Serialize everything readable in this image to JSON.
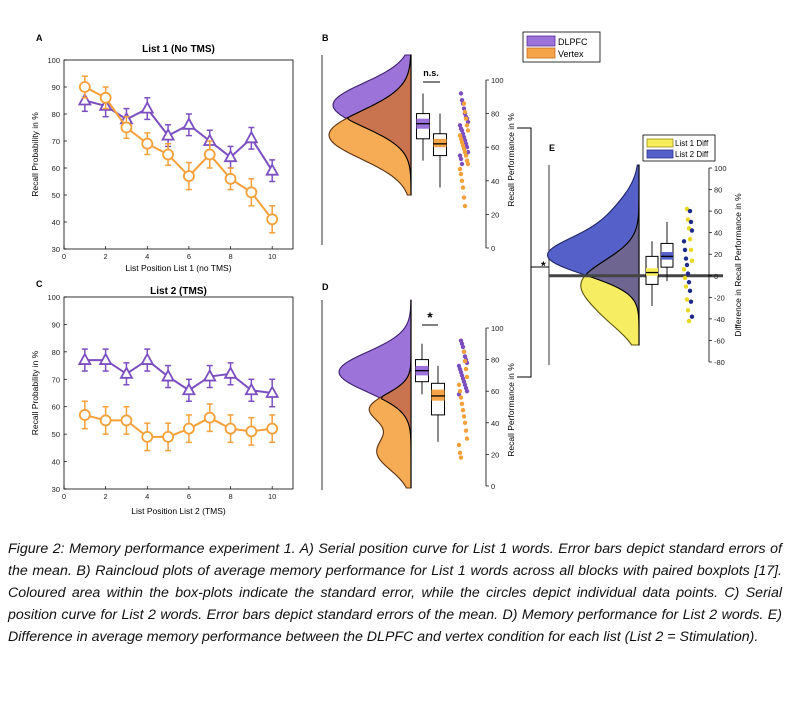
{
  "colors": {
    "dlpfc": "#7b4fc0",
    "dlpfc_fill": "#9b73d9",
    "vertex": "#f5a03a",
    "vertex_fill": "#f5a447",
    "overlap": "#c9744f",
    "list1_diff": "#f7ec5a",
    "list2_diff": "#5560c8",
    "overlap_e": "#6e6690"
  },
  "chart_data": [
    {
      "panel": "A",
      "type": "line",
      "title": "List 1 (No TMS)",
      "xlabel": "List Position List 1 (no TMS)",
      "ylabel": "Recall Probability in %",
      "xlim": [
        0,
        11
      ],
      "ylim": [
        30,
        100
      ],
      "xticks": [
        "0",
        "2",
        "4",
        "6",
        "8",
        "10"
      ],
      "yticks": [
        "30",
        "40",
        "50",
        "60",
        "70",
        "80",
        "90",
        "100"
      ],
      "x": [
        1,
        2,
        3,
        4,
        5,
        6,
        7,
        8,
        9,
        10
      ],
      "series": [
        {
          "name": "DLPFC",
          "marker": "triangle",
          "values": [
            85,
            83,
            78,
            82,
            72,
            76,
            70,
            64,
            71,
            59
          ],
          "errors": [
            4,
            4,
            4,
            4,
            4,
            4,
            4,
            4,
            4,
            4
          ]
        },
        {
          "name": "Vertex",
          "marker": "circle",
          "values": [
            90,
            86,
            75,
            69,
            65,
            57,
            65,
            56,
            51,
            41
          ],
          "errors": [
            4,
            4,
            4,
            4,
            4,
            5,
            5,
            4,
            5,
            5
          ]
        }
      ]
    },
    {
      "panel": "C",
      "type": "line",
      "title": "List 2 (TMS)",
      "xlabel": "List Position List 2 (TMS)",
      "ylabel": "Recall Probability in %",
      "xlim": [
        0,
        11
      ],
      "ylim": [
        30,
        100
      ],
      "xticks": [
        "0",
        "2",
        "4",
        "6",
        "8",
        "10"
      ],
      "yticks": [
        "30",
        "40",
        "50",
        "60",
        "70",
        "80",
        "90",
        "100"
      ],
      "x": [
        1,
        2,
        3,
        4,
        5,
        6,
        7,
        8,
        9,
        10
      ],
      "series": [
        {
          "name": "DLPFC",
          "marker": "triangle",
          "values": [
            77,
            77,
            72,
            77,
            71,
            66,
            71,
            72,
            66,
            65
          ],
          "errors": [
            4,
            4,
            4,
            4,
            4,
            4,
            4,
            4,
            4,
            5
          ]
        },
        {
          "name": "Vertex",
          "marker": "circle",
          "values": [
            57,
            55,
            55,
            49,
            49,
            52,
            56,
            52,
            51,
            52
          ],
          "errors": [
            5,
            5,
            5,
            5,
            5,
            5,
            5,
            5,
            5,
            5
          ]
        }
      ]
    },
    {
      "panel": "B",
      "type": "raincloud",
      "ylabel": "Recall Performance in %",
      "ylim": [
        0,
        100
      ],
      "yticks": [
        "0",
        "20",
        "40",
        "60",
        "80",
        "100"
      ],
      "significance": "n.s.",
      "boxes": [
        {
          "name": "DLPFC",
          "q1": 65,
          "median": 74,
          "q3": 80,
          "whisker_low": 52,
          "whisker_high": 92,
          "se_low": 71,
          "se_high": 77
        },
        {
          "name": "Vertex",
          "q1": 55,
          "median": 62,
          "q3": 68,
          "whisker_low": 36,
          "whisker_high": 80,
          "se_low": 60,
          "se_high": 65
        }
      ],
      "points": {
        "DLPFC": [
          92,
          88,
          86,
          83,
          80,
          78,
          77,
          75,
          73,
          71,
          70,
          68,
          66,
          64,
          62,
          60,
          57,
          55,
          53,
          50
        ],
        "Vertex": [
          86,
          81,
          77,
          73,
          70,
          67,
          65,
          63,
          61,
          59,
          57,
          55,
          52,
          50,
          47,
          44,
          40,
          36,
          30,
          25
        ]
      }
    },
    {
      "panel": "D",
      "type": "raincloud",
      "ylabel": "Recall Performance in %",
      "ylim": [
        0,
        100
      ],
      "yticks": [
        "0",
        "20",
        "40",
        "60",
        "80",
        "100"
      ],
      "significance": "*",
      "boxes": [
        {
          "name": "DLPFC",
          "q1": 66,
          "median": 73,
          "q3": 80,
          "whisker_low": 58,
          "whisker_high": 90,
          "se_low": 70,
          "se_high": 76
        },
        {
          "name": "Vertex",
          "q1": 45,
          "median": 57,
          "q3": 65,
          "whisker_low": 28,
          "whisker_high": 76,
          "se_low": 54,
          "se_high": 61
        }
      ],
      "points": {
        "DLPFC": [
          92,
          90,
          88,
          85,
          82,
          80,
          78,
          76,
          74,
          72,
          70,
          68,
          66,
          64,
          62,
          60,
          58
        ],
        "Vertex": [
          85,
          79,
          74,
          69,
          64,
          60,
          56,
          52,
          48,
          44,
          40,
          35,
          30,
          26,
          21,
          18
        ]
      }
    },
    {
      "panel": "E",
      "type": "raincloud",
      "ylabel": "Difference in Recall Performance in %",
      "ylim": [
        -80,
        100
      ],
      "yticks": [
        "-80",
        "-60",
        "-40",
        "-20",
        "0",
        "20",
        "40",
        "60",
        "80",
        "100"
      ],
      "legend": [
        "List 1 Diff",
        "List 2 Diff"
      ],
      "boxes": [
        {
          "name": "List 1 Diff",
          "q1": -8,
          "median": 3,
          "q3": 18,
          "whisker_low": -28,
          "whisker_high": 32,
          "se_low": 0,
          "se_high": 7
        },
        {
          "name": "List 2 Diff",
          "q1": 8,
          "median": 18,
          "q3": 30,
          "whisker_low": -5,
          "whisker_high": 50,
          "se_low": 15,
          "se_high": 22
        }
      ],
      "points": {
        "List 1 Diff": [
          62,
          52,
          44,
          34,
          24,
          14,
          6,
          -2,
          -10,
          -22,
          -32,
          -42
        ],
        "List 2 Diff": [
          60,
          50,
          42,
          32,
          24,
          16,
          10,
          2,
          -6,
          -14,
          -24,
          -38
        ]
      }
    }
  ],
  "panel_labels": {
    "a": "A",
    "b": "B",
    "c": "C",
    "d": "D",
    "e": "E"
  },
  "legend_main": {
    "dlpfc": "DLPFC",
    "vertex": "Vertex"
  },
  "e_star": "*",
  "caption": "Figure 2: Memory performance experiment 1. A) Serial position curve for List 1 words. Error bars depict standard errors of the mean. B) Raincloud plots of average memory performance for List 1 words across all blocks with paired boxplots [17]. Coloured area within the box-plots indicate the standard error, while the circles depict individual data points. C) Serial position curve for List 2 words. Error bars depict standard errors of the mean. D) Memory performance for List 2 words.  E) Difference in average memory performance between the DLPFC and vertex condition for each list (List 2 = Stimulation)."
}
